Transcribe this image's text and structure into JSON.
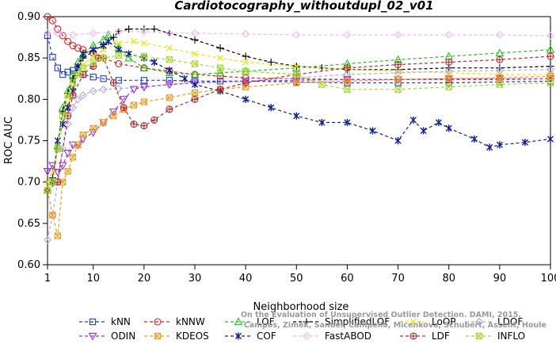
{
  "chart_data": {
    "type": "line",
    "title": "Cardiotocography_withoutdupl_02_v01",
    "xlabel": "Neighborhood size",
    "ylabel": "ROC AUC",
    "xlim": [
      1,
      100
    ],
    "ylim": [
      0.6,
      0.9
    ],
    "x_ticks": [
      1,
      10,
      20,
      30,
      40,
      50,
      60,
      70,
      80,
      90,
      100
    ],
    "y_ticks": [
      "0.60",
      "0.65",
      "0.70",
      "0.75",
      "0.80",
      "0.85",
      "0.90"
    ],
    "grid": false,
    "legend_position": "bottom",
    "watermark": [
      "Campos, Zimek, Sander, Campello, Micenkova, Schubert, Assent, Houle",
      "On the Evaluation of Unsupervised Outlier Detection. DAMI, 2015."
    ],
    "series": [
      {
        "name": "kNN",
        "color": "#1f3fcf",
        "marker": "square",
        "points": [
          [
            1,
            0.877
          ],
          [
            2,
            0.851
          ],
          [
            3,
            0.838
          ],
          [
            4,
            0.83
          ],
          [
            5,
            0.833
          ],
          [
            6,
            0.835
          ],
          [
            7,
            0.832
          ],
          [
            8,
            0.83
          ],
          [
            10,
            0.827
          ],
          [
            12,
            0.825
          ],
          [
            15,
            0.823
          ],
          [
            20,
            0.823
          ],
          [
            25,
            0.823
          ],
          [
            30,
            0.822
          ],
          [
            35,
            0.822
          ],
          [
            40,
            0.822
          ],
          [
            50,
            0.821
          ],
          [
            60,
            0.82
          ],
          [
            70,
            0.82
          ],
          [
            80,
            0.82
          ],
          [
            90,
            0.821
          ],
          [
            100,
            0.822
          ]
        ]
      },
      {
        "name": "kNNW",
        "color": "#e02020",
        "marker": "circle",
        "points": [
          [
            1,
            0.9
          ],
          [
            2,
            0.895
          ],
          [
            3,
            0.885
          ],
          [
            4,
            0.877
          ],
          [
            5,
            0.87
          ],
          [
            6,
            0.865
          ],
          [
            7,
            0.862
          ],
          [
            8,
            0.86
          ],
          [
            10,
            0.856
          ],
          [
            12,
            0.85
          ],
          [
            15,
            0.843
          ],
          [
            20,
            0.838
          ],
          [
            25,
            0.834
          ],
          [
            30,
            0.83
          ],
          [
            35,
            0.828
          ],
          [
            40,
            0.826
          ],
          [
            50,
            0.825
          ],
          [
            60,
            0.824
          ],
          [
            70,
            0.824
          ],
          [
            80,
            0.824
          ],
          [
            90,
            0.824
          ],
          [
            100,
            0.825
          ]
        ]
      },
      {
        "name": "LOF",
        "color": "#22c41d",
        "marker": "triangle-up",
        "points": [
          [
            1,
            0.69
          ],
          [
            2,
            0.7
          ],
          [
            3,
            0.745
          ],
          [
            4,
            0.79
          ],
          [
            5,
            0.81
          ],
          [
            6,
            0.83
          ],
          [
            7,
            0.845
          ],
          [
            8,
            0.855
          ],
          [
            10,
            0.865
          ],
          [
            12,
            0.872
          ],
          [
            13,
            0.878
          ],
          [
            15,
            0.862
          ],
          [
            17,
            0.85
          ],
          [
            20,
            0.838
          ],
          [
            25,
            0.832
          ],
          [
            30,
            0.83
          ],
          [
            35,
            0.832
          ],
          [
            40,
            0.834
          ],
          [
            50,
            0.838
          ],
          [
            60,
            0.843
          ],
          [
            70,
            0.848
          ],
          [
            80,
            0.852
          ],
          [
            90,
            0.856
          ],
          [
            100,
            0.86
          ]
        ]
      },
      {
        "name": "SimplifiedLOF",
        "color": "#000000",
        "marker": "plus",
        "points": [
          [
            1,
            0.69
          ],
          [
            2,
            0.705
          ],
          [
            3,
            0.74
          ],
          [
            4,
            0.785
          ],
          [
            5,
            0.808
          ],
          [
            6,
            0.825
          ],
          [
            7,
            0.84
          ],
          [
            8,
            0.85
          ],
          [
            10,
            0.858
          ],
          [
            12,
            0.866
          ],
          [
            14,
            0.875
          ],
          [
            15,
            0.882
          ],
          [
            17,
            0.885
          ],
          [
            20,
            0.885
          ],
          [
            22,
            0.885
          ],
          [
            25,
            0.88
          ],
          [
            30,
            0.872
          ],
          [
            35,
            0.862
          ],
          [
            40,
            0.852
          ],
          [
            45,
            0.845
          ],
          [
            50,
            0.84
          ],
          [
            55,
            0.838
          ],
          [
            60,
            0.836
          ],
          [
            70,
            0.836
          ],
          [
            80,
            0.838
          ],
          [
            90,
            0.838
          ],
          [
            100,
            0.84
          ]
        ]
      },
      {
        "name": "LoOP",
        "color": "#f0e000",
        "marker": "cross",
        "points": [
          [
            1,
            0.7
          ],
          [
            2,
            0.712
          ],
          [
            3,
            0.74
          ],
          [
            4,
            0.77
          ],
          [
            5,
            0.795
          ],
          [
            6,
            0.815
          ],
          [
            7,
            0.83
          ],
          [
            8,
            0.842
          ],
          [
            10,
            0.852
          ],
          [
            12,
            0.86
          ],
          [
            15,
            0.868
          ],
          [
            18,
            0.87
          ],
          [
            20,
            0.868
          ],
          [
            25,
            0.862
          ],
          [
            30,
            0.855
          ],
          [
            35,
            0.85
          ],
          [
            40,
            0.845
          ],
          [
            50,
            0.84
          ],
          [
            60,
            0.836
          ],
          [
            70,
            0.834
          ],
          [
            80,
            0.832
          ],
          [
            90,
            0.83
          ],
          [
            100,
            0.83
          ]
        ]
      },
      {
        "name": "LDOF",
        "color": "#b0a8e8",
        "marker": "diamond",
        "points": [
          [
            1,
            0.63
          ],
          [
            2,
            0.66
          ],
          [
            3,
            0.7
          ],
          [
            4,
            0.74
          ],
          [
            5,
            0.77
          ],
          [
            6,
            0.79
          ],
          [
            7,
            0.8
          ],
          [
            8,
            0.805
          ],
          [
            10,
            0.81
          ],
          [
            12,
            0.812
          ],
          [
            15,
            0.813
          ],
          [
            20,
            0.815
          ],
          [
            25,
            0.818
          ],
          [
            30,
            0.82
          ],
          [
            40,
            0.822
          ],
          [
            50,
            0.826
          ],
          [
            60,
            0.83
          ],
          [
            70,
            0.832
          ],
          [
            80,
            0.834
          ],
          [
            90,
            0.835
          ],
          [
            100,
            0.836
          ]
        ]
      },
      {
        "name": "ODIN",
        "color": "#9b30d9",
        "marker": "triangle-down",
        "points": [
          [
            1,
            0.713
          ],
          [
            2,
            0.72
          ],
          [
            3,
            0.712
          ],
          [
            4,
            0.72
          ],
          [
            5,
            0.735
          ],
          [
            6,
            0.745
          ],
          [
            7,
            0.745
          ],
          [
            8,
            0.752
          ],
          [
            10,
            0.76
          ],
          [
            12,
            0.772
          ],
          [
            14,
            0.785
          ],
          [
            16,
            0.8
          ],
          [
            18,
            0.812
          ],
          [
            20,
            0.815
          ],
          [
            25,
            0.818
          ],
          [
            30,
            0.82
          ],
          [
            40,
            0.822
          ],
          [
            50,
            0.823
          ],
          [
            60,
            0.824
          ],
          [
            70,
            0.824
          ],
          [
            80,
            0.825
          ],
          [
            90,
            0.825
          ],
          [
            100,
            0.825
          ]
        ]
      },
      {
        "name": "KDEOS",
        "color": "#f09a18",
        "marker": "square-x",
        "points": [
          [
            1,
            0.69
          ],
          [
            2,
            0.66
          ],
          [
            3,
            0.635
          ],
          [
            4,
            0.7
          ],
          [
            5,
            0.713
          ],
          [
            6,
            0.73
          ],
          [
            7,
            0.745
          ],
          [
            8,
            0.757
          ],
          [
            10,
            0.765
          ],
          [
            12,
            0.772
          ],
          [
            14,
            0.78
          ],
          [
            16,
            0.788
          ],
          [
            18,
            0.793
          ],
          [
            20,
            0.797
          ],
          [
            25,
            0.802
          ],
          [
            30,
            0.808
          ],
          [
            35,
            0.812
          ],
          [
            40,
            0.815
          ],
          [
            50,
            0.82
          ],
          [
            60,
            0.822
          ],
          [
            70,
            0.824
          ],
          [
            80,
            0.825
          ],
          [
            90,
            0.826
          ],
          [
            100,
            0.828
          ]
        ]
      },
      {
        "name": "COF",
        "color": "#102090",
        "marker": "asterisk",
        "points": [
          [
            1,
            0.69
          ],
          [
            2,
            0.7
          ],
          [
            3,
            0.75
          ],
          [
            4,
            0.77
          ],
          [
            5,
            0.79
          ],
          [
            6,
            0.81
          ],
          [
            7,
            0.84
          ],
          [
            8,
            0.855
          ],
          [
            10,
            0.86
          ],
          [
            12,
            0.865
          ],
          [
            13,
            0.87
          ],
          [
            15,
            0.86
          ],
          [
            17,
            0.855
          ],
          [
            20,
            0.85
          ],
          [
            22,
            0.845
          ],
          [
            25,
            0.835
          ],
          [
            28,
            0.825
          ],
          [
            30,
            0.818
          ],
          [
            35,
            0.81
          ],
          [
            40,
            0.8
          ],
          [
            45,
            0.79
          ],
          [
            50,
            0.78
          ],
          [
            55,
            0.772
          ],
          [
            60,
            0.772
          ],
          [
            65,
            0.762
          ],
          [
            70,
            0.75
          ],
          [
            73,
            0.775
          ],
          [
            75,
            0.762
          ],
          [
            78,
            0.772
          ],
          [
            80,
            0.765
          ],
          [
            85,
            0.752
          ],
          [
            88,
            0.742
          ],
          [
            90,
            0.745
          ],
          [
            95,
            0.748
          ],
          [
            100,
            0.752
          ]
        ]
      },
      {
        "name": "FastABOD",
        "color": "#f4b8f0",
        "marker": "diamond",
        "points": [
          [
            1,
            0.88
          ],
          [
            3,
            0.88
          ],
          [
            6,
            0.878
          ],
          [
            10,
            0.88
          ],
          [
            15,
            0.882
          ],
          [
            20,
            0.882
          ],
          [
            25,
            0.88
          ],
          [
            30,
            0.88
          ],
          [
            40,
            0.879
          ],
          [
            50,
            0.878
          ],
          [
            60,
            0.878
          ],
          [
            70,
            0.878
          ],
          [
            80,
            0.878
          ],
          [
            90,
            0.878
          ],
          [
            100,
            0.877
          ]
        ]
      },
      {
        "name": "LDF",
        "color": "#b03030",
        "marker": "circle-plus",
        "points": [
          [
            1,
            0.69
          ],
          [
            3,
            0.7
          ],
          [
            5,
            0.78
          ],
          [
            6,
            0.805
          ],
          [
            8,
            0.83
          ],
          [
            10,
            0.84
          ],
          [
            11,
            0.85
          ],
          [
            12,
            0.85
          ],
          [
            14,
            0.82
          ],
          [
            16,
            0.79
          ],
          [
            18,
            0.77
          ],
          [
            20,
            0.768
          ],
          [
            22,
            0.775
          ],
          [
            25,
            0.788
          ],
          [
            30,
            0.8
          ],
          [
            35,
            0.812
          ],
          [
            40,
            0.82
          ],
          [
            50,
            0.83
          ],
          [
            60,
            0.838
          ],
          [
            70,
            0.842
          ],
          [
            80,
            0.845
          ],
          [
            90,
            0.848
          ],
          [
            100,
            0.852
          ]
        ]
      },
      {
        "name": "INFLO",
        "color": "#a8d830",
        "marker": "square-x",
        "points": [
          [
            1,
            0.69
          ],
          [
            2,
            0.7
          ],
          [
            3,
            0.74
          ],
          [
            4,
            0.78
          ],
          [
            5,
            0.805
          ],
          [
            6,
            0.82
          ],
          [
            7,
            0.83
          ],
          [
            8,
            0.838
          ],
          [
            10,
            0.845
          ],
          [
            12,
            0.85
          ],
          [
            15,
            0.853
          ],
          [
            20,
            0.852
          ],
          [
            25,
            0.848
          ],
          [
            30,
            0.843
          ],
          [
            35,
            0.838
          ],
          [
            40,
            0.834
          ],
          [
            50,
            0.83
          ],
          [
            55,
            0.818
          ],
          [
            60,
            0.812
          ],
          [
            70,
            0.812
          ],
          [
            80,
            0.815
          ],
          [
            90,
            0.818
          ],
          [
            100,
            0.82
          ]
        ]
      }
    ]
  }
}
